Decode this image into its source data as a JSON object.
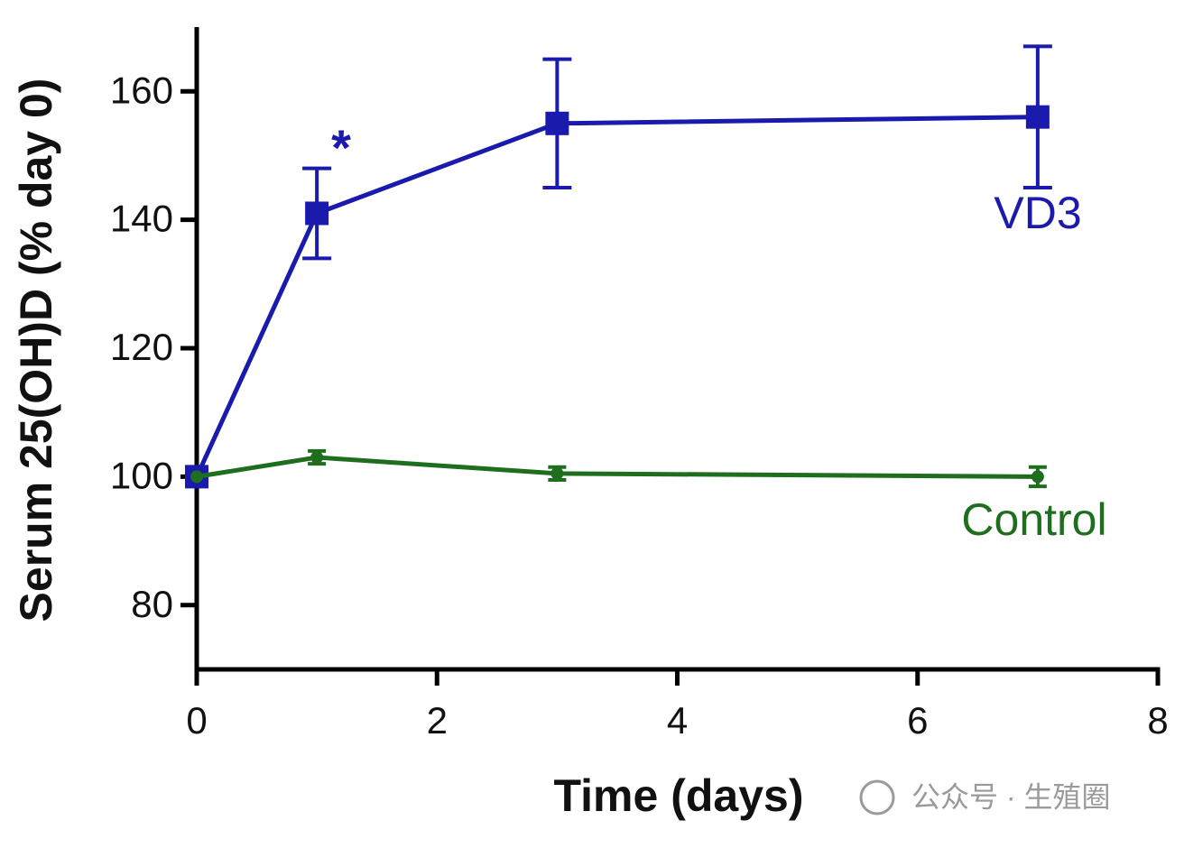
{
  "chart_data": {
    "type": "line",
    "x_label": "Time (days)",
    "y_label": "Serum 25(OH)D (% day 0)",
    "x": [
      0,
      1,
      3,
      7
    ],
    "series": [
      {
        "name": "VD3",
        "color": "#1a1aad",
        "marker": "square",
        "values": [
          100,
          141,
          155,
          156
        ],
        "errors": [
          0,
          7,
          10,
          11
        ]
      },
      {
        "name": "Control",
        "color": "#1e6e1e",
        "marker": "circle",
        "values": [
          100,
          103,
          100.5,
          100
        ],
        "errors": [
          0,
          1,
          1,
          1.5
        ]
      }
    ],
    "annotation": "*",
    "xlim": [
      0,
      8
    ],
    "xticks": [
      0,
      2,
      4,
      6,
      8
    ],
    "ylim": [
      70,
      170
    ],
    "yticks": [
      80,
      100,
      120,
      140,
      160
    ],
    "grid": false,
    "watermark": "公众号 · 生殖圈"
  }
}
